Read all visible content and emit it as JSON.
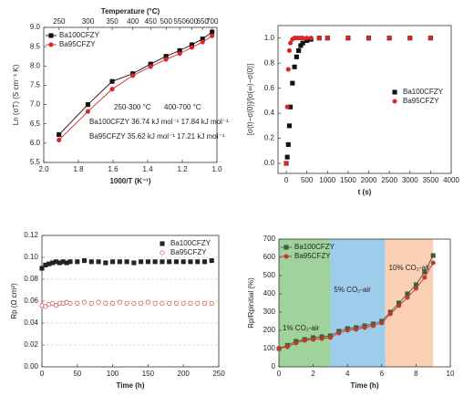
{
  "chart_data": [
    {
      "type": "scatter",
      "xlabel": "1000/T (K⁻¹)",
      "ylabel": "Ln (σT) (S cm⁻¹ K)",
      "x2label": "Temperature (°C)",
      "xlim": [
        2.0,
        1.0
      ],
      "xticks": [
        {
          "value": 2.0,
          "label": "2.0"
        },
        {
          "value": 1.8,
          "label": "1.8"
        },
        {
          "value": 1.6,
          "label": "1.6"
        },
        {
          "value": 1.4,
          "label": "1.4"
        },
        {
          "value": 1.2,
          "label": "1.2"
        },
        {
          "value": 1.0,
          "label": "1.0"
        }
      ],
      "x2ticks": [
        250,
        300,
        350,
        400,
        450,
        500,
        550,
        600,
        650,
        700
      ],
      "ylim": [
        5.5,
        9.0
      ],
      "yticks": [
        5.5,
        {
          "value": 6.0,
          "label": "6.0"
        },
        6.5,
        {
          "value": 7.0,
          "label": "7.0"
        },
        7.5,
        {
          "value": 8.0,
          "label": "8.0"
        },
        8.5,
        {
          "value": 9.0,
          "label": "9.0"
        }
      ],
      "grid": false,
      "legend": "upper left",
      "x": [
        1.912,
        1.745,
        1.605,
        1.486,
        1.383,
        1.294,
        1.215,
        1.145,
        1.083,
        1.028
      ],
      "series": [
        {
          "name": "Ba100CFZY",
          "color": "#111111",
          "marker": "square",
          "hollow": false,
          "line": true,
          "values": [
            6.22,
            7.0,
            7.6,
            7.8,
            8.05,
            8.25,
            8.4,
            8.55,
            8.7,
            8.88
          ]
        },
        {
          "name": "Ba95CFZY",
          "color": "#d62728",
          "marker": "circle",
          "hollow": false,
          "line": true,
          "values": [
            6.08,
            6.82,
            7.4,
            7.75,
            7.98,
            8.17,
            8.32,
            8.48,
            8.62,
            8.78
          ]
        }
      ],
      "annotations": [
        {
          "text": "250-300 °C",
          "color": "#222222"
        },
        {
          "text": "400-700 °C",
          "color": "#222222"
        },
        {
          "text": "Ba100CFZY 36.74 kJ mol⁻¹  17.84 kJ mol⁻¹",
          "color": "#222222"
        },
        {
          "text": "Ba95CFZY  35.62 kJ mol⁻¹  17.21 kJ mol⁻¹",
          "color": "#d62728"
        }
      ]
    },
    {
      "type": "scatter",
      "xlabel": "t (s)",
      "ylabel": "[σ(t)−σ(0)]/[σ(∞)−σ(0)]",
      "xlim": [
        -200,
        4000
      ],
      "xticks": [
        0,
        500,
        1000,
        1500,
        2000,
        2500,
        3000,
        3500,
        4000
      ],
      "ylim": [
        -0.08,
        1.1
      ],
      "yticks": [
        {
          "value": 0.0,
          "label": "0.0"
        },
        0.2,
        0.4,
        0.6,
        0.8,
        {
          "value": 1.0,
          "label": "1.0"
        }
      ],
      "grid": false,
      "legend": "center right",
      "x": [
        0,
        25,
        50,
        75,
        100,
        150,
        200,
        250,
        300,
        350,
        400,
        500,
        600,
        800,
        1000,
        1500,
        2000,
        2500,
        3000,
        3500
      ],
      "series": [
        {
          "name": "Ba100CFZY",
          "color": "#111111",
          "marker": "square",
          "hollow": false,
          "line": false,
          "values": [
            0,
            0.05,
            0.15,
            0.3,
            0.45,
            0.64,
            0.77,
            0.85,
            0.9,
            0.94,
            0.96,
            0.98,
            0.99,
            1.0,
            1.0,
            1.0,
            1.0,
            1.0,
            1.0,
            1.0
          ]
        },
        {
          "name": "Ba95CFZY",
          "color": "#d62728",
          "marker": "circle",
          "hollow": false,
          "line": false,
          "values": [
            0,
            0.45,
            0.75,
            0.9,
            0.96,
            0.99,
            1.0,
            1.0,
            1.0,
            1.0,
            1.0,
            1.0,
            1.0,
            1.0,
            1.0,
            1.0,
            1.0,
            1.0,
            1.0,
            1.0
          ]
        }
      ]
    },
    {
      "type": "scatter",
      "xlabel": "Time (h)",
      "ylabel": "Rp (Ω cm²)",
      "xlim": [
        0,
        250
      ],
      "xticks": [
        0,
        50,
        100,
        150,
        200,
        250
      ],
      "ylim": [
        0,
        0.12
      ],
      "yticks": [
        {
          "value": 0,
          "label": "0.00"
        },
        {
          "value": 0.02,
          "label": "0.02"
        },
        {
          "value": 0.04,
          "label": "0.04"
        },
        {
          "value": 0.06,
          "label": "0.06"
        },
        {
          "value": 0.08,
          "label": "0.08"
        },
        {
          "value": 0.1,
          "label": "0.10"
        },
        {
          "value": 0.12,
          "label": "0.12"
        }
      ],
      "grid": true,
      "legend": "upper right",
      "x": [
        0,
        5,
        10,
        15,
        20,
        25,
        30,
        35,
        40,
        50,
        60,
        70,
        80,
        90,
        100,
        110,
        120,
        130,
        140,
        150,
        160,
        170,
        180,
        190,
        200,
        210,
        220,
        230,
        240
      ],
      "series": [
        {
          "name": "Ba100CFZY",
          "color": "#222222",
          "marker": "square",
          "hollow": false,
          "line": false,
          "values": [
            0.09,
            0.093,
            0.094,
            0.095,
            0.096,
            0.095,
            0.096,
            0.095,
            0.096,
            0.096,
            0.097,
            0.096,
            0.096,
            0.095,
            0.096,
            0.096,
            0.096,
            0.095,
            0.096,
            0.096,
            0.096,
            0.096,
            0.096,
            0.096,
            0.096,
            0.096,
            0.096,
            0.096,
            0.097
          ]
        },
        {
          "name": "Ba95CFZY",
          "color": "#e0443e",
          "marker": "circle",
          "hollow": true,
          "line": false,
          "values": [
            0.056,
            0.055,
            0.057,
            0.058,
            0.056,
            0.058,
            0.058,
            0.059,
            0.058,
            0.058,
            0.059,
            0.058,
            0.059,
            0.058,
            0.058,
            0.059,
            0.058,
            0.058,
            0.058,
            0.059,
            0.058,
            0.058,
            0.058,
            0.058,
            0.058,
            0.058,
            0.058,
            0.058,
            0.058
          ]
        }
      ]
    },
    {
      "type": "line",
      "xlabel": "Time (h)",
      "ylabel": "Rp/Rpinitial (%)",
      "xlim": [
        0,
        10
      ],
      "xticks": [
        0,
        2,
        4,
        6,
        8,
        10
      ],
      "ylim": [
        0,
        700
      ],
      "yticks": [
        0,
        100,
        200,
        300,
        400,
        500,
        600,
        700
      ],
      "grid": false,
      "legend": "upper left",
      "regions": [
        {
          "label": "1% CO₂-air",
          "start": 0,
          "end": 3,
          "color": "#8fcb8a"
        },
        {
          "label": "5% CO₂-air",
          "start": 3,
          "end": 6.2,
          "color": "#8cc4e8"
        },
        {
          "label": "10% CO₂-air",
          "start": 6.2,
          "end": 9,
          "color": "#f9c7a6"
        }
      ],
      "x": [
        0,
        0.5,
        1,
        1.5,
        2,
        2.5,
        3,
        3.5,
        4,
        4.5,
        5,
        5.5,
        6,
        6.5,
        7,
        7.5,
        8,
        8.5,
        9
      ],
      "series": [
        {
          "name": "Ba100CFZY",
          "color": "#3d5e3d",
          "marker": "square",
          "hollow": false,
          "line": true,
          "values": [
            100,
            118,
            140,
            150,
            160,
            165,
            170,
            195,
            210,
            215,
            225,
            235,
            250,
            300,
            350,
            400,
            450,
            520,
            610
          ]
        },
        {
          "name": "Ba95CFZY",
          "color": "#c0392b",
          "marker": "circle",
          "hollow": false,
          "line": true,
          "values": [
            100,
            110,
            130,
            145,
            150,
            155,
            160,
            185,
            200,
            205,
            215,
            225,
            240,
            290,
            335,
            380,
            430,
            490,
            570
          ]
        }
      ]
    }
  ]
}
